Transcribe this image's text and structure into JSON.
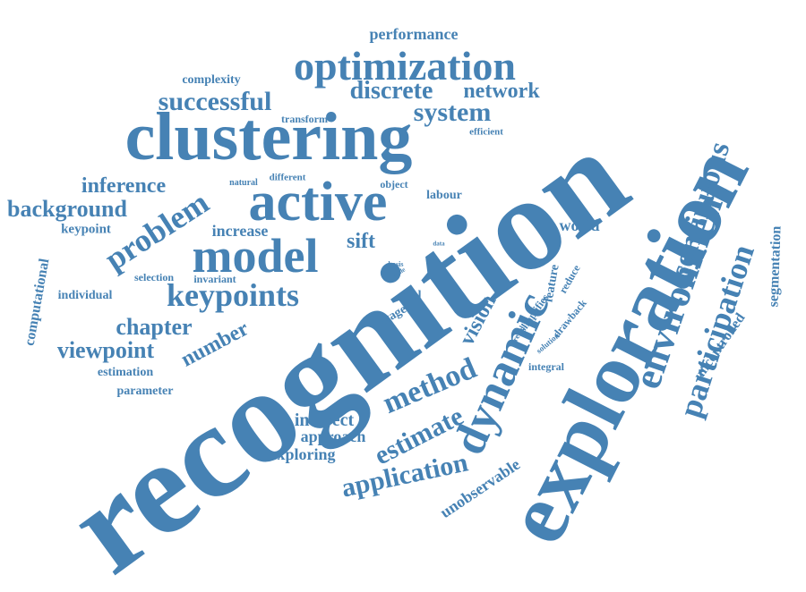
{
  "color": "#4682b4",
  "words": [
    {
      "text": "recognition",
      "size": 150
    },
    {
      "text": "exploration",
      "size": 98
    },
    {
      "text": "clustering",
      "size": 76
    },
    {
      "text": "active",
      "size": 62
    },
    {
      "text": "optimization",
      "size": 46
    },
    {
      "text": "dynamic",
      "size": 52
    },
    {
      "text": "environment",
      "size": 44
    },
    {
      "text": "model",
      "size": 54
    },
    {
      "text": "keypoints",
      "size": 36
    },
    {
      "text": "participation",
      "size": 36
    },
    {
      "text": "continuous",
      "size": 34
    },
    {
      "text": "problem",
      "size": 36
    },
    {
      "text": "method",
      "size": 34
    },
    {
      "text": "system",
      "size": 30
    },
    {
      "text": "successful",
      "size": 30
    },
    {
      "text": "discrete",
      "size": 28
    },
    {
      "text": "network",
      "size": 24
    },
    {
      "text": "background",
      "size": 26
    },
    {
      "text": "inference",
      "size": 24
    },
    {
      "text": "viewpoint",
      "size": 26
    },
    {
      "text": "chapter",
      "size": 26
    },
    {
      "text": "number",
      "size": 24
    },
    {
      "text": "estimate",
      "size": 30
    },
    {
      "text": "application",
      "size": 30
    },
    {
      "text": "vision",
      "size": 24
    },
    {
      "text": "sift",
      "size": 24
    },
    {
      "text": "performance",
      "size": 18
    },
    {
      "text": "increase",
      "size": 18
    },
    {
      "text": "indirect",
      "size": 20
    },
    {
      "text": "approach",
      "size": 18
    },
    {
      "text": "exploring",
      "size": 18
    },
    {
      "text": "unobservable",
      "size": 18
    },
    {
      "text": "segmentation",
      "size": 16
    },
    {
      "text": "uncontrolled",
      "size": 16
    },
    {
      "text": "computational",
      "size": 16
    },
    {
      "text": "world",
      "size": 18
    },
    {
      "text": "complexity",
      "size": 14
    },
    {
      "text": "transform",
      "size": 12
    },
    {
      "text": "efficient",
      "size": 11
    },
    {
      "text": "natural",
      "size": 10
    },
    {
      "text": "different",
      "size": 11
    },
    {
      "text": "object",
      "size": 12
    },
    {
      "text": "labour",
      "size": 14
    },
    {
      "text": "keypoint",
      "size": 15
    },
    {
      "text": "selection",
      "size": 12
    },
    {
      "text": "invariant",
      "size": 12
    },
    {
      "text": "individual",
      "size": 14
    },
    {
      "text": "estimation",
      "size": 14
    },
    {
      "text": "parameter",
      "size": 14
    },
    {
      "text": "real",
      "size": 14
    },
    {
      "text": "wage",
      "size": 14
    },
    {
      "text": "basis",
      "size": 8
    },
    {
      "text": "scale",
      "size": 7
    },
    {
      "text": "data",
      "size": 7
    },
    {
      "text": "feature",
      "size": 14
    },
    {
      "text": "simplifies",
      "size": 12
    },
    {
      "text": "reduce",
      "size": 12
    },
    {
      "text": "drawback",
      "size": 12
    },
    {
      "text": "result",
      "size": 9
    },
    {
      "text": "solution",
      "size": 9
    },
    {
      "text": "integral",
      "size": 12
    }
  ]
}
